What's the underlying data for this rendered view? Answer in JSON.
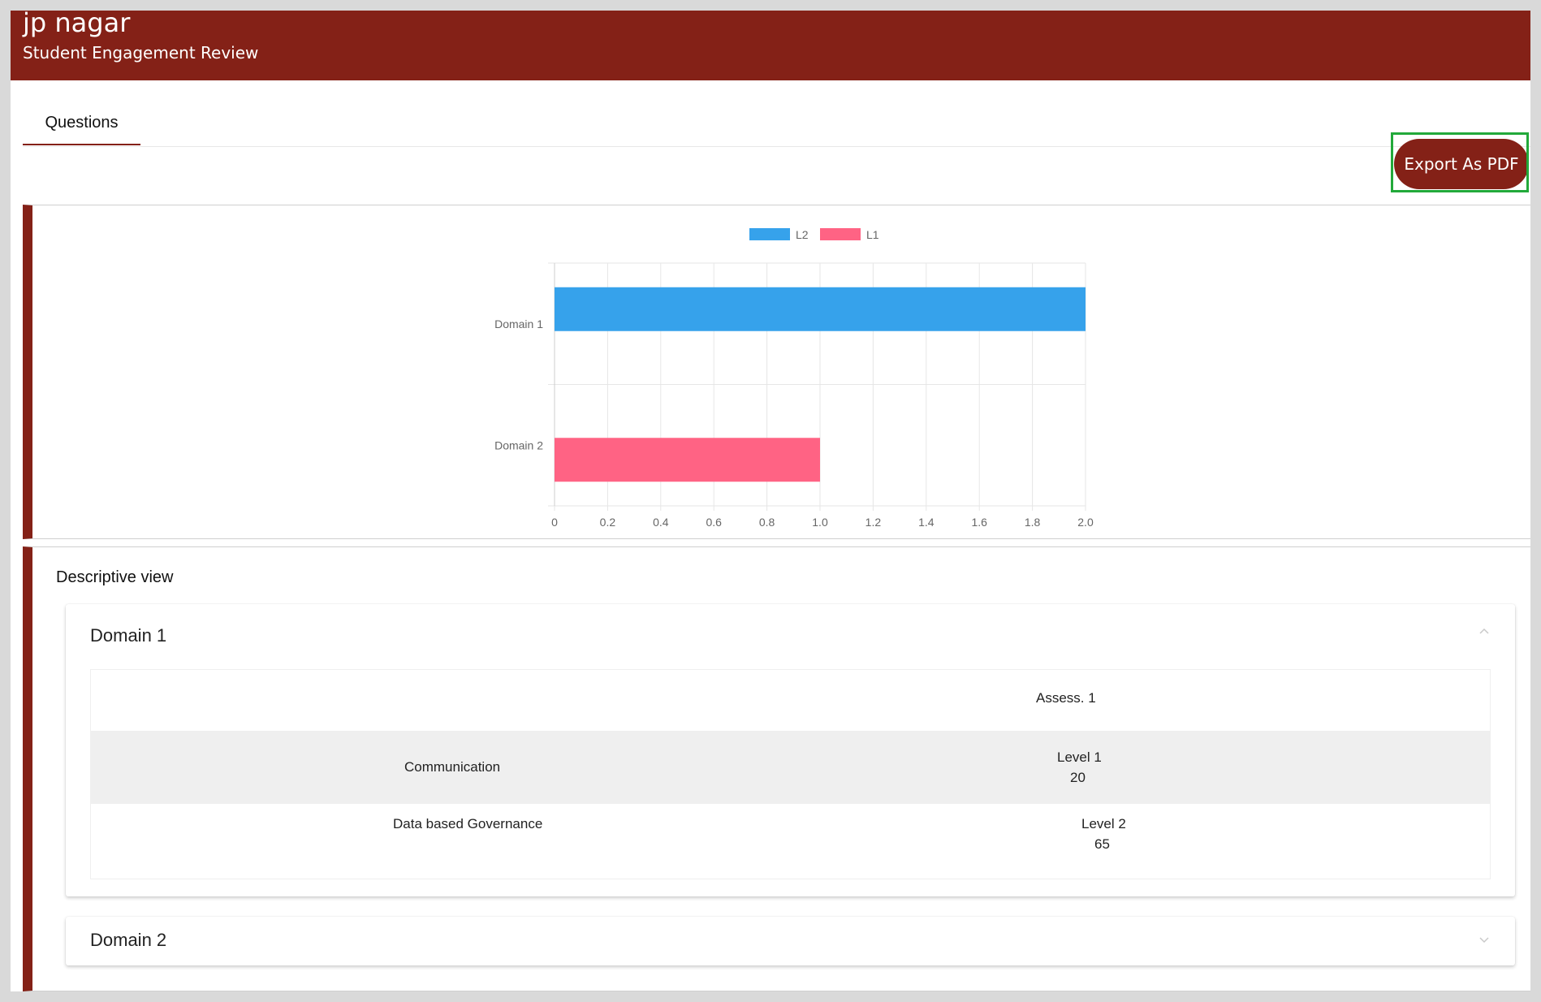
{
  "header": {
    "title": "jp nagar",
    "subtitle": "Student Engagement Review"
  },
  "tabs": [
    {
      "label": "Questions"
    }
  ],
  "toolbar": {
    "export_label": "Export As PDF"
  },
  "chart_data": {
    "type": "bar",
    "orientation": "horizontal",
    "categories": [
      "Domain 1",
      "Domain 2"
    ],
    "series": [
      {
        "name": "L2",
        "color": "#36a2eb",
        "values": [
          2.0,
          null
        ]
      },
      {
        "name": "L1",
        "color": "#ff6384",
        "values": [
          null,
          1.0
        ]
      }
    ],
    "xlim": [
      0,
      2.0
    ],
    "xticks": [
      "0",
      "0.2",
      "0.4",
      "0.6",
      "0.8",
      "1.0",
      "1.2",
      "1.4",
      "1.6",
      "1.8",
      "2.0"
    ],
    "legend": "top",
    "grid": true
  },
  "descriptive": {
    "title": "Descriptive view",
    "domains": [
      {
        "name": "Domain 1",
        "expanded": true,
        "column_header": "Assess. 1",
        "rows": [
          {
            "label": "Communication",
            "level": "Level 1",
            "score": "20"
          },
          {
            "label": "Data based Governance",
            "level": "Level 2",
            "score": "65"
          }
        ]
      },
      {
        "name": "Domain 2",
        "expanded": false
      }
    ]
  },
  "colors": {
    "brand": "#842117",
    "highlight": "#22a93a"
  }
}
